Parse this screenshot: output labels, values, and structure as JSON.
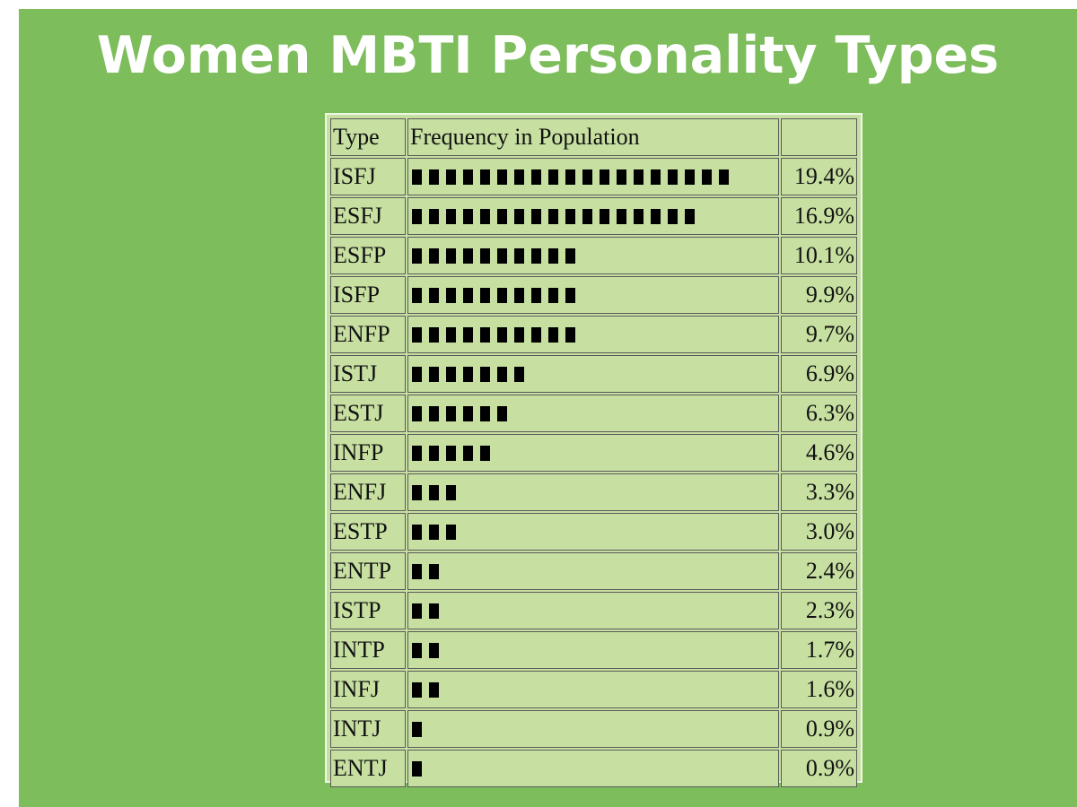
{
  "chart_data": {
    "type": "table",
    "title": "Women MBTI Personality Types",
    "columns": [
      "Type",
      "Frequency in Population",
      ""
    ],
    "rows": [
      {
        "type": "ISFJ",
        "blocks": 19,
        "percent": "19.4%",
        "value": 19.4
      },
      {
        "type": "ESFJ",
        "blocks": 17,
        "percent": "16.9%",
        "value": 16.9
      },
      {
        "type": "ESFP",
        "blocks": 10,
        "percent": "10.1%",
        "value": 10.1
      },
      {
        "type": "ISFP",
        "blocks": 10,
        "percent": "9.9%",
        "value": 9.9
      },
      {
        "type": "ENFP",
        "blocks": 10,
        "percent": "9.7%",
        "value": 9.7
      },
      {
        "type": "ISTJ",
        "blocks": 7,
        "percent": "6.9%",
        "value": 6.9
      },
      {
        "type": "ESTJ",
        "blocks": 6,
        "percent": "6.3%",
        "value": 6.3
      },
      {
        "type": "INFP",
        "blocks": 5,
        "percent": "4.6%",
        "value": 4.6
      },
      {
        "type": "ENFJ",
        "blocks": 3,
        "percent": "3.3%",
        "value": 3.3
      },
      {
        "type": "ESTP",
        "blocks": 3,
        "percent": "3.0%",
        "value": 3.0
      },
      {
        "type": "ENTP",
        "blocks": 2,
        "percent": "2.4%",
        "value": 2.4
      },
      {
        "type": "ISTP",
        "blocks": 2,
        "percent": "2.3%",
        "value": 2.3
      },
      {
        "type": "INTP",
        "blocks": 2,
        "percent": "1.7%",
        "value": 1.7
      },
      {
        "type": "INFJ",
        "blocks": 2,
        "percent": "1.6%",
        "value": 1.6
      },
      {
        "type": "INTJ",
        "blocks": 1,
        "percent": "0.9%",
        "value": 0.9
      },
      {
        "type": "ENTJ",
        "blocks": 1,
        "percent": "0.9%",
        "value": 0.9
      }
    ]
  },
  "colors": {
    "slide_background": "#7dbd5c",
    "table_background": "#c7e0a1",
    "title_text": "#ffffff",
    "bar_block": "#000000"
  }
}
